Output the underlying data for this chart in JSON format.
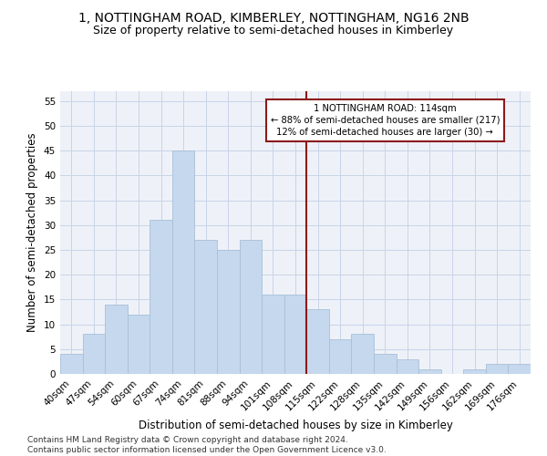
{
  "title": "1, NOTTINGHAM ROAD, KIMBERLEY, NOTTINGHAM, NG16 2NB",
  "subtitle": "Size of property relative to semi-detached houses in Kimberley",
  "xlabel": "Distribution of semi-detached houses by size in Kimberley",
  "ylabel": "Number of semi-detached properties",
  "categories": [
    "40sqm",
    "47sqm",
    "54sqm",
    "60sqm",
    "67sqm",
    "74sqm",
    "81sqm",
    "88sqm",
    "94sqm",
    "101sqm",
    "108sqm",
    "115sqm",
    "122sqm",
    "128sqm",
    "135sqm",
    "142sqm",
    "149sqm",
    "156sqm",
    "162sqm",
    "169sqm",
    "176sqm"
  ],
  "values": [
    4,
    8,
    14,
    12,
    31,
    45,
    27,
    25,
    27,
    16,
    16,
    13,
    7,
    8,
    4,
    3,
    1,
    0,
    1,
    2,
    2
  ],
  "bar_color": "#c5d8ed",
  "bar_edge_color": "#a8c0d8",
  "vline_color": "#8b1a1a",
  "annotation_text": "1 NOTTINGHAM ROAD: 114sqm\n← 88% of semi-detached houses are smaller (217)\n12% of semi-detached houses are larger (30) →",
  "annotation_box_color": "#8b1a1a",
  "ylim": [
    0,
    57
  ],
  "yticks": [
    0,
    5,
    10,
    15,
    20,
    25,
    30,
    35,
    40,
    45,
    50,
    55
  ],
  "grid_color": "#c8d4e8",
  "bg_color": "#eef2f8",
  "footer": "Contains HM Land Registry data © Crown copyright and database right 2024.\nContains public sector information licensed under the Open Government Licence v3.0.",
  "title_fontsize": 10,
  "subtitle_fontsize": 9,
  "axis_label_fontsize": 8.5,
  "tick_fontsize": 7.5,
  "footer_fontsize": 6.5
}
